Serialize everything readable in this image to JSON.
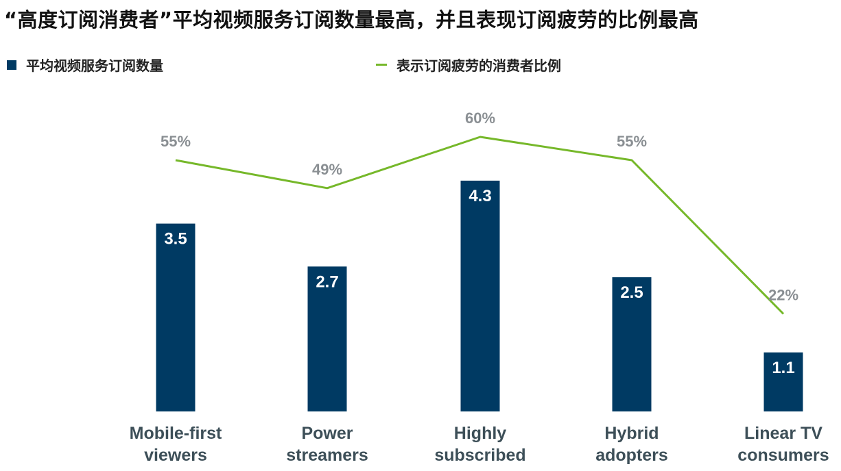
{
  "colors": {
    "bar": "#003a63",
    "line": "#76b82a",
    "pct_label": "#8a8f93",
    "category_label": "#3d4f58"
  },
  "chart_data": {
    "type": "bar",
    "title": "“高度订阅消费者”平均视频服务订阅数量最高，并且表现订阅疲劳的比例最高",
    "categories": [
      [
        "Mobile-first",
        "viewers"
      ],
      [
        "Power",
        "streamers"
      ],
      [
        "Highly",
        "subscribed"
      ],
      [
        "Hybrid",
        "adopters"
      ],
      [
        "Linear TV",
        "consumers"
      ]
    ],
    "series": [
      {
        "name": "平均视频服务订阅数量",
        "kind": "bar",
        "values": [
          3.5,
          2.7,
          4.3,
          2.5,
          1.1
        ],
        "labels": [
          "3.5",
          "2.7",
          "4.3",
          "2.5",
          "1.1"
        ]
      },
      {
        "name": "表示订阅疲劳的消费者比例",
        "kind": "line",
        "values": [
          55,
          49,
          60,
          55,
          22
        ],
        "labels": [
          "55%",
          "49%",
          "60%",
          "55%",
          "22%"
        ]
      }
    ],
    "legend_position": "top-left",
    "grid": false
  }
}
